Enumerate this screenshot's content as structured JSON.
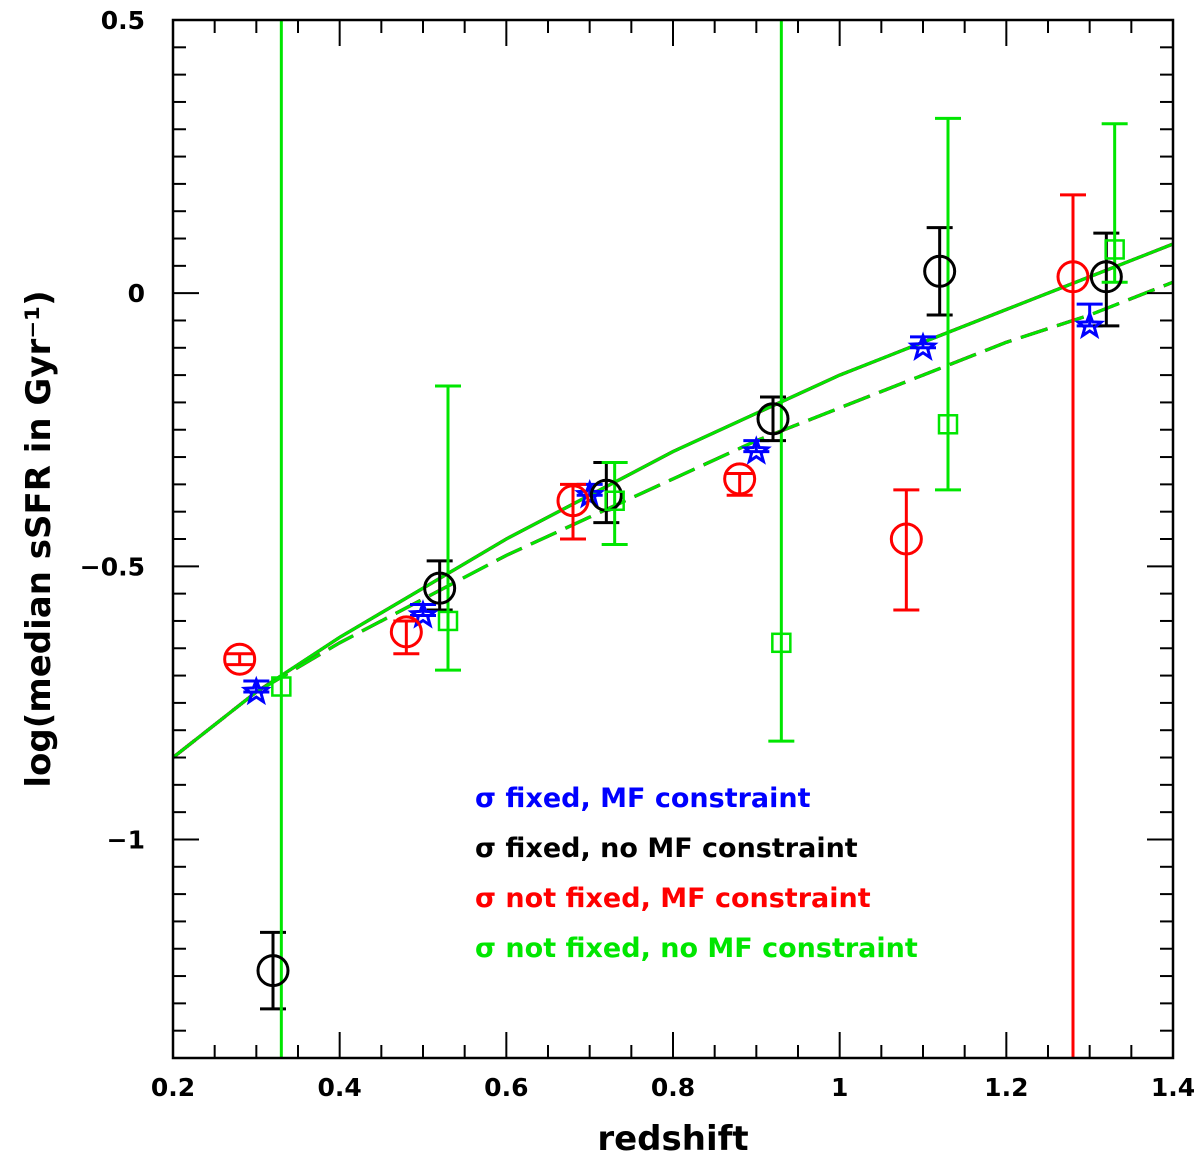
{
  "chart_data": {
    "type": "scatter",
    "xlabel": "redshift",
    "ylabel": "log(median sSFR in Gyr⁻¹)",
    "xlim": [
      0.2,
      1.4
    ],
    "ylim": [
      -1.4,
      0.5
    ],
    "x_ticks": [
      {
        "value": 0.2,
        "label": "0.2"
      },
      {
        "value": 0.4,
        "label": "0.4"
      },
      {
        "value": 0.6,
        "label": "0.6"
      },
      {
        "value": 0.8,
        "label": "0.8"
      },
      {
        "value": 1.0,
        "label": "1"
      },
      {
        "value": 1.2,
        "label": "1.2"
      },
      {
        "value": 1.4,
        "label": "1.4"
      }
    ],
    "y_ticks": [
      {
        "value": 0.5,
        "label": "0.5"
      },
      {
        "value": 0.0,
        "label": "0"
      },
      {
        "value": -0.5,
        "label": "−0.5"
      },
      {
        "value": -1.0,
        "label": "−1"
      }
    ],
    "grid": false,
    "legend_position": "bottom-center",
    "series": [
      {
        "name": "σ fixed, MF constraint",
        "color": "#0000ff",
        "marker": "star",
        "points": [
          {
            "x": 0.3,
            "y": -0.73,
            "lo": -0.73,
            "hi": -0.71
          },
          {
            "x": 0.5,
            "y": -0.59,
            "lo": -0.59,
            "hi": -0.57
          },
          {
            "x": 0.7,
            "y": -0.37,
            "lo": -0.37,
            "hi": -0.35
          },
          {
            "x": 0.9,
            "y": -0.29,
            "lo": -0.29,
            "hi": -0.27
          },
          {
            "x": 1.1,
            "y": -0.1,
            "lo": -0.1,
            "hi": -0.08
          },
          {
            "x": 1.3,
            "y": -0.06,
            "lo": -0.06,
            "hi": -0.02
          }
        ]
      },
      {
        "name": "σ fixed, no MF constraint",
        "color": "#000000",
        "marker": "circle",
        "points": [
          {
            "x": 0.32,
            "y": -1.24,
            "lo": -1.31,
            "hi": -1.17
          },
          {
            "x": 0.52,
            "y": -0.54,
            "lo": -0.58,
            "hi": -0.49
          },
          {
            "x": 0.72,
            "y": -0.37,
            "lo": -0.42,
            "hi": -0.31
          },
          {
            "x": 0.92,
            "y": -0.23,
            "lo": -0.27,
            "hi": -0.19
          },
          {
            "x": 1.12,
            "y": 0.04,
            "lo": -0.04,
            "hi": 0.12
          },
          {
            "x": 1.32,
            "y": 0.03,
            "lo": -0.06,
            "hi": 0.11
          }
        ]
      },
      {
        "name": "σ not fixed, MF constraint",
        "color": "#ff0000",
        "marker": "circle",
        "points": [
          {
            "x": 0.28,
            "y": -0.67,
            "lo": -0.68,
            "hi": -0.66
          },
          {
            "x": 0.48,
            "y": -0.62,
            "lo": -0.66,
            "hi": -0.6
          },
          {
            "x": 0.68,
            "y": -0.38,
            "lo": -0.45,
            "hi": -0.35
          },
          {
            "x": 0.88,
            "y": -0.34,
            "lo": -0.37,
            "hi": -0.33
          },
          {
            "x": 1.08,
            "y": -0.45,
            "lo": -0.58,
            "hi": -0.36
          },
          {
            "x": 1.28,
            "y": 0.03,
            "lo": -1.4,
            "hi": 0.18
          }
        ]
      },
      {
        "name": "σ not fixed, no MF constraint",
        "color": "#00e600",
        "marker": "square",
        "points": [
          {
            "x": 0.33,
            "y": -0.72,
            "lo": -1.4,
            "hi": 0.5
          },
          {
            "x": 0.53,
            "y": -0.6,
            "lo": -0.69,
            "hi": -0.17
          },
          {
            "x": 0.73,
            "y": -0.38,
            "lo": -0.46,
            "hi": -0.31
          },
          {
            "x": 0.93,
            "y": -0.64,
            "lo": -0.82,
            "hi": 0.5
          },
          {
            "x": 1.13,
            "y": -0.24,
            "lo": -0.36,
            "hi": 0.32
          },
          {
            "x": 1.33,
            "y": 0.08,
            "lo": 0.02,
            "hi": 0.31
          }
        ]
      }
    ],
    "fit_lines": [
      {
        "style": "solid",
        "colors": [
          "#000000",
          "#0000ff",
          "#ff0000",
          "#00e600"
        ],
        "x": [
          0.2,
          0.3,
          0.4,
          0.5,
          0.6,
          0.7,
          0.8,
          0.9,
          1.0,
          1.1,
          1.2,
          1.3,
          1.4
        ],
        "y": [
          -0.85,
          -0.73,
          -0.63,
          -0.54,
          -0.45,
          -0.37,
          -0.29,
          -0.22,
          -0.15,
          -0.09,
          -0.03,
          0.03,
          0.09
        ]
      },
      {
        "style": "dashed",
        "colors": [
          "#000000",
          "#0000ff",
          "#ff0000",
          "#00e600"
        ],
        "x": [
          0.2,
          0.3,
          0.4,
          0.5,
          0.6,
          0.7,
          0.8,
          0.9,
          1.0,
          1.1,
          1.2,
          1.3,
          1.4
        ],
        "y": [
          -0.85,
          -0.73,
          -0.64,
          -0.56,
          -0.48,
          -0.41,
          -0.34,
          -0.27,
          -0.21,
          -0.15,
          -0.09,
          -0.04,
          0.02
        ]
      }
    ]
  }
}
